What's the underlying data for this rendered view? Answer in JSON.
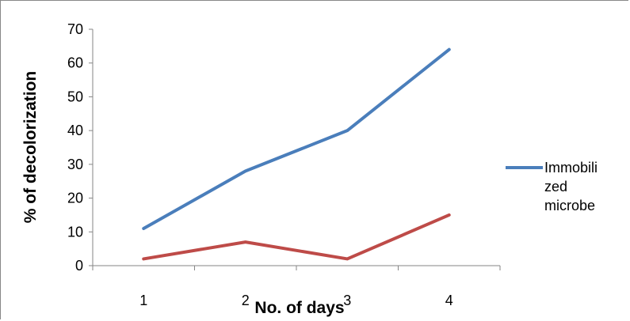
{
  "chart_data": {
    "type": "line",
    "xlabel": "No. of days",
    "ylabel": "% of decolorization",
    "categories": [
      "1",
      "2",
      "3",
      "4"
    ],
    "ylim": [
      0,
      70
    ],
    "yticks": [
      0,
      10,
      20,
      30,
      40,
      50,
      60,
      70
    ],
    "grid": false,
    "legend_position": "right",
    "series": [
      {
        "name": "Immobilized microbe",
        "legend_lines": [
          "Immobili",
          "zed",
          "microbe"
        ],
        "values": [
          11,
          28,
          40,
          64
        ],
        "color": "#4a7ebb"
      },
      {
        "values": [
          2,
          7,
          2,
          15
        ],
        "color": "#be4b48"
      }
    ]
  }
}
